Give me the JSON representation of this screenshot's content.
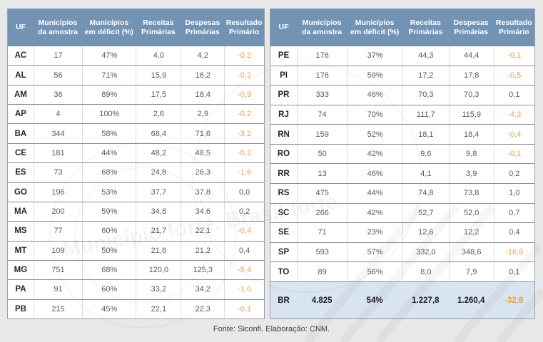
{
  "columns": [
    {
      "key": "uf",
      "label": "UF"
    },
    {
      "key": "municipios-amostra",
      "label": "Municípios da amostra"
    },
    {
      "key": "municipios-deficit",
      "label": "Municípios em déficit (%)"
    },
    {
      "key": "receitas-primarias",
      "label": "Receitas Primárias"
    },
    {
      "key": "despesas-primarias",
      "label": "Despesas Primárias"
    },
    {
      "key": "resultado-primario",
      "label": "Resultado Primário"
    }
  ],
  "tables": {
    "left": {
      "rows": [
        {
          "uf": "AC",
          "amostra": "17",
          "deficit": "47%",
          "receitas": "4,0",
          "despesas": "4,2",
          "resultado": "-0,2",
          "negative": true
        },
        {
          "uf": "AL",
          "amostra": "56",
          "deficit": "71%",
          "receitas": "15,9",
          "despesas": "16,2",
          "resultado": "-0,2",
          "negative": true
        },
        {
          "uf": "AM",
          "amostra": "36",
          "deficit": "89%",
          "receitas": "17,5",
          "despesas": "18,4",
          "resultado": "-0,9",
          "negative": true
        },
        {
          "uf": "AP",
          "amostra": "4",
          "deficit": "100%",
          "receitas": "2,6",
          "despesas": "2,9",
          "resultado": "-0,2",
          "negative": true
        },
        {
          "uf": "BA",
          "amostra": "344",
          "deficit": "58%",
          "receitas": "68,4",
          "despesas": "71,6",
          "resultado": "-3,2",
          "negative": true
        },
        {
          "uf": "CE",
          "amostra": "181",
          "deficit": "44%",
          "receitas": "48,2",
          "despesas": "48,5",
          "resultado": "-0,2",
          "negative": true
        },
        {
          "uf": "ES",
          "amostra": "73",
          "deficit": "68%",
          "receitas": "24,8",
          "despesas": "26,3",
          "resultado": "-1,6",
          "negative": true
        },
        {
          "uf": "GO",
          "amostra": "196",
          "deficit": "53%",
          "receitas": "37,7",
          "despesas": "37,8",
          "resultado": "0,0",
          "negative": false
        },
        {
          "uf": "MA",
          "amostra": "200",
          "deficit": "59%",
          "receitas": "34,8",
          "despesas": "34,6",
          "resultado": "0,2",
          "negative": false
        },
        {
          "uf": "MS",
          "amostra": "77",
          "deficit": "60%",
          "receitas": "21,7",
          "despesas": "22,1",
          "resultado": "-0,4",
          "negative": true
        },
        {
          "uf": "MT",
          "amostra": "109",
          "deficit": "50%",
          "receitas": "21,6",
          "despesas": "21,2",
          "resultado": "0,4",
          "negative": false
        },
        {
          "uf": "MG",
          "amostra": "751",
          "deficit": "68%",
          "receitas": "120,0",
          "despesas": "125,3",
          "resultado": "-5,4",
          "negative": true
        },
        {
          "uf": "PA",
          "amostra": "91",
          "deficit": "60%",
          "receitas": "33,2",
          "despesas": "34,2",
          "resultado": "-1,0",
          "negative": true
        },
        {
          "uf": "PB",
          "amostra": "215",
          "deficit": "45%",
          "receitas": "22,1",
          "despesas": "22,3",
          "resultado": "-0,1",
          "negative": true
        }
      ]
    },
    "right": {
      "rows": [
        {
          "uf": "PE",
          "amostra": "176",
          "deficit": "37%",
          "receitas": "44,3",
          "despesas": "44,4",
          "resultado": "-0,1",
          "negative": true
        },
        {
          "uf": "PI",
          "amostra": "176",
          "deficit": "59%",
          "receitas": "17,2",
          "despesas": "17,8",
          "resultado": "-0,5",
          "negative": true
        },
        {
          "uf": "PR",
          "amostra": "333",
          "deficit": "46%",
          "receitas": "70,3",
          "despesas": "70,3",
          "resultado": "0,1",
          "negative": false
        },
        {
          "uf": "RJ",
          "amostra": "74",
          "deficit": "70%",
          "receitas": "111,7",
          "despesas": "115,9",
          "resultado": "-4,3",
          "negative": true
        },
        {
          "uf": "RN",
          "amostra": "159",
          "deficit": "52%",
          "receitas": "18,1",
          "despesas": "18,4",
          "resultado": "-0,4",
          "negative": true
        },
        {
          "uf": "RO",
          "amostra": "50",
          "deficit": "42%",
          "receitas": "9,6",
          "despesas": "9,8",
          "resultado": "-0,1",
          "negative": true
        },
        {
          "uf": "RR",
          "amostra": "13",
          "deficit": "46%",
          "receitas": "4,1",
          "despesas": "3,9",
          "resultado": "0,2",
          "negative": false
        },
        {
          "uf": "RS",
          "amostra": "475",
          "deficit": "44%",
          "receitas": "74,8",
          "despesas": "73,8",
          "resultado": "1,0",
          "negative": false
        },
        {
          "uf": "SC",
          "amostra": "266",
          "deficit": "42%",
          "receitas": "52,7",
          "despesas": "52,0",
          "resultado": "0,7",
          "negative": false
        },
        {
          "uf": "SE",
          "amostra": "71",
          "deficit": "23%",
          "receitas": "12,6",
          "despesas": "12,2",
          "resultado": "0,4",
          "negative": false
        },
        {
          "uf": "SP",
          "amostra": "593",
          "deficit": "57%",
          "receitas": "332,0",
          "despesas": "348,6",
          "resultado": "-16,6",
          "negative": true
        },
        {
          "uf": "TO",
          "amostra": "89",
          "deficit": "56%",
          "receitas": "8,0",
          "despesas": "7,9",
          "resultado": "0,1",
          "negative": false
        }
      ],
      "summary": {
        "uf": "BR",
        "amostra": "4.825",
        "deficit": "54%",
        "receitas": "1.227,8",
        "despesas": "1.260,4",
        "resultado": "-32,6",
        "negative": true
      }
    }
  },
  "footer": "Fonte: Siconfi. Elaboração: CNM.",
  "watermark_text": "Município forte. Brasil forte.",
  "colors": {
    "page_bg": "#e8e8e8",
    "header_bg": "#7393b5",
    "header_text": "#ffffff",
    "row_border": "#8c8c8c",
    "col_border": "#dcdcdc",
    "uf_text": "#262626",
    "value_text": "#58595b",
    "negative": "#f0a03a",
    "summary_bg": "#d9e4f1"
  }
}
